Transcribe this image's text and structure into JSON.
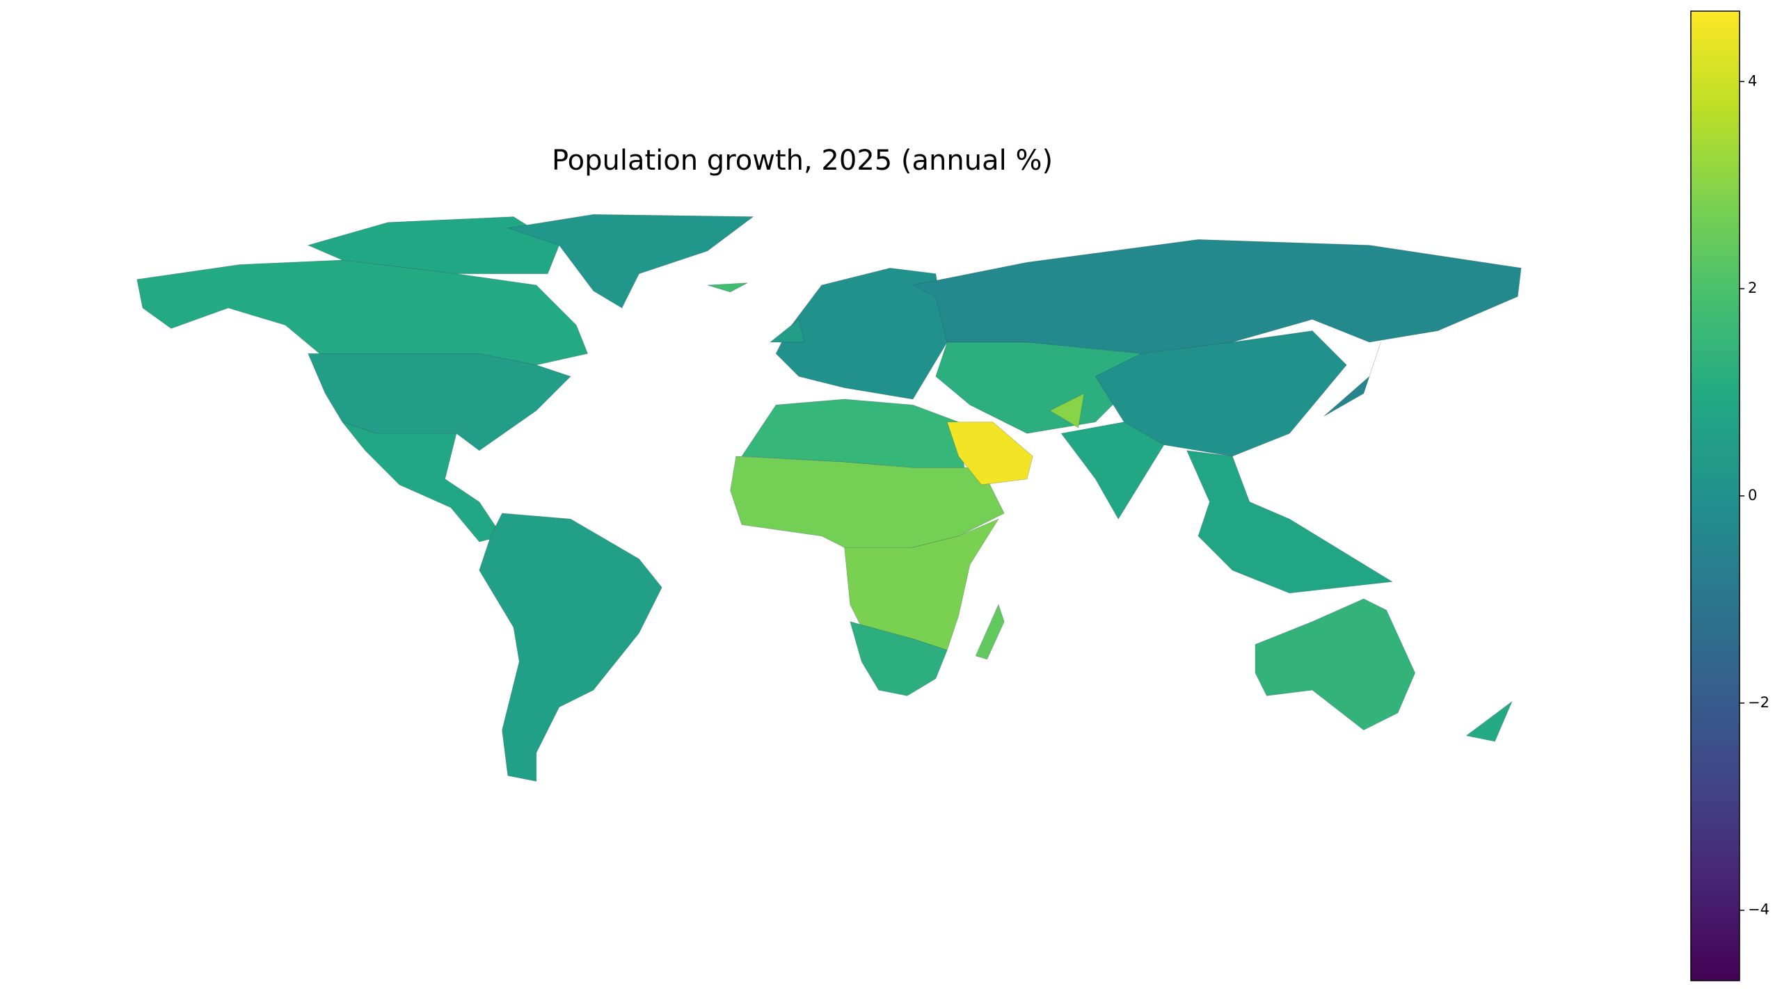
{
  "chart_data": {
    "type": "choropleth",
    "title": "Population growth, 2025 (annual %)",
    "values": [
      1.0,
      0.5,
      0.9,
      0.2,
      0.9,
      0.6,
      0.0,
      -0.3,
      1.2,
      0.0,
      0.9,
      0.8,
      -0.5,
      1.4,
      1.0,
      1.5,
      2.7,
      2.8,
      1.2,
      4.5,
      2.4,
      1.8,
      0.5,
      3.0
    ],
    "clim": [
      -4.68,
      4.68
    ],
    "cticks": [
      {
        "value": -4,
        "label": "−4"
      },
      {
        "value": -2,
        "label": "−2"
      },
      0,
      2,
      4
    ],
    "colormap": [
      "#440154",
      "#482475",
      "#414487",
      "#355f8d",
      "#2a788e",
      "#21918c",
      "#22a884",
      "#44bf70",
      "#7ad151",
      "#bddf26",
      "#fde725"
    ]
  }
}
